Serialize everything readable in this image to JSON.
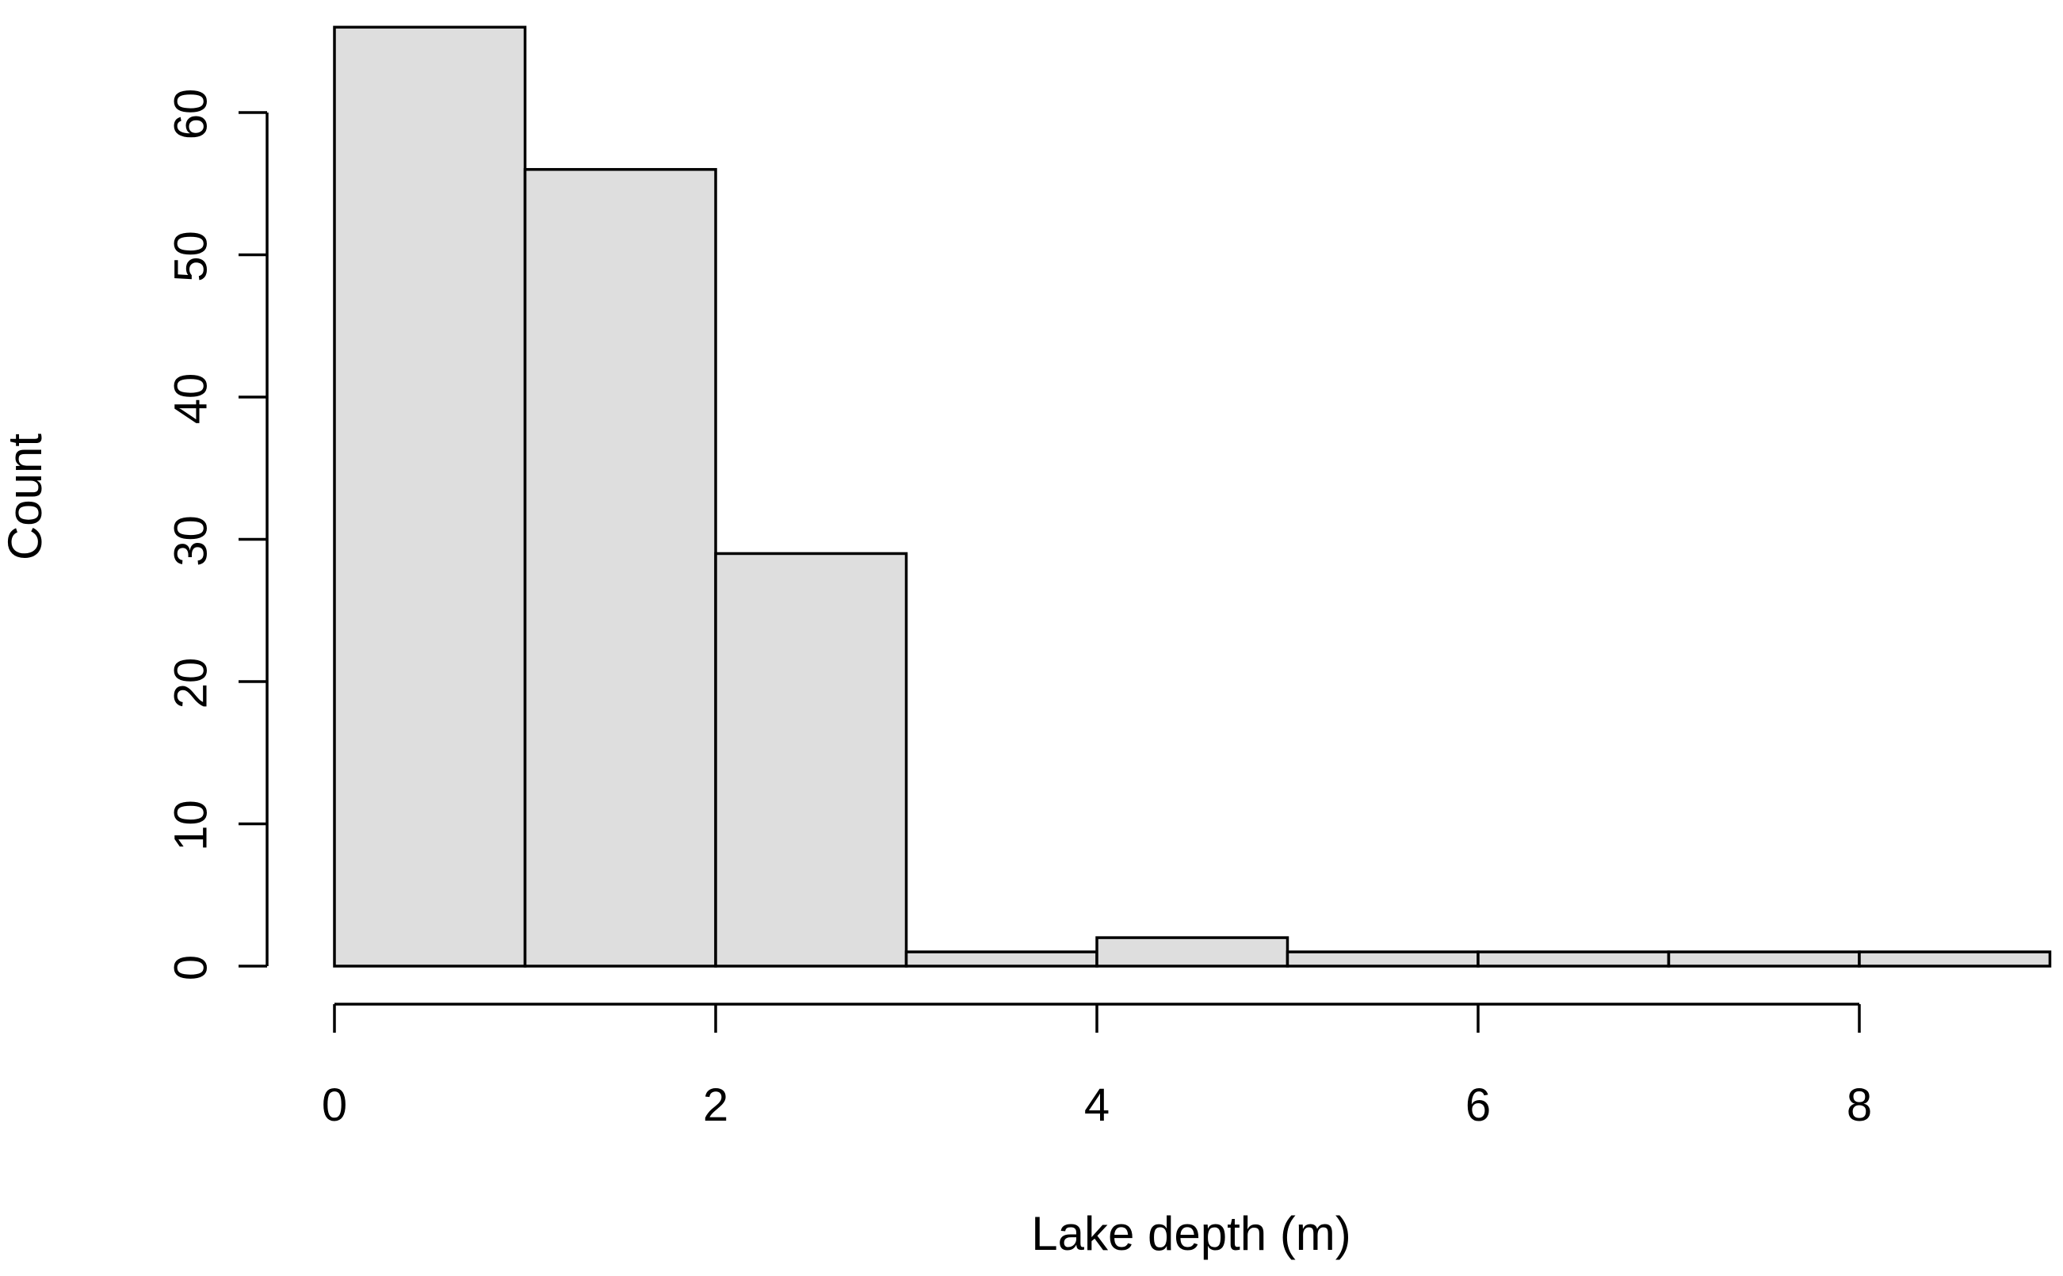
{
  "chart_data": {
    "type": "bar",
    "subtype": "histogram",
    "bin_edges": [
      0,
      1,
      2,
      3,
      4,
      5,
      6,
      7,
      8,
      9
    ],
    "values": [
      66,
      56,
      29,
      1,
      2,
      1,
      1,
      1,
      1
    ],
    "title": "",
    "xlabel": "Lake depth (m)",
    "ylabel": "Count",
    "xlim": [
      0,
      9
    ],
    "ylim": [
      0,
      66
    ],
    "x_ticks": [
      0,
      2,
      4,
      6,
      8
    ],
    "y_ticks": [
      0,
      10,
      20,
      30,
      40,
      50,
      60
    ],
    "grid": false,
    "legend": "none",
    "colors": {
      "bar_fill": "#dedede",
      "bar_edge": "#000000"
    }
  }
}
